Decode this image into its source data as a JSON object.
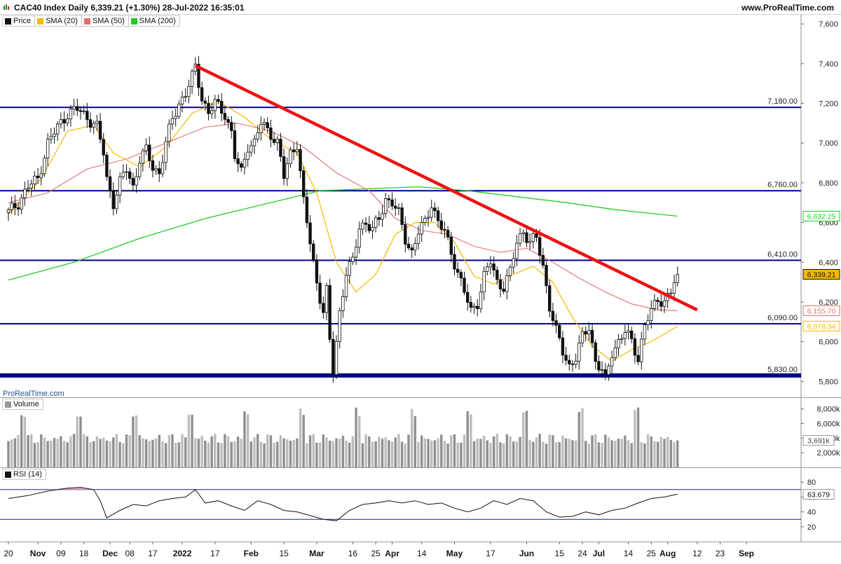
{
  "header": {
    "title": "CAC40 Index Daily 6,339.21 (+1.30%) 28-Jul-2022 16:35:01",
    "site": "www.ProRealTime.com"
  },
  "legend": {
    "price": "Price",
    "sma20": "SMA (20)",
    "sma50": "SMA (50)",
    "sma200": "SMA (200)",
    "volume": "Volume",
    "rsi": "RSI (14)"
  },
  "watermark": "ProRealTime.com",
  "colors": {
    "sma20": "#f5b800",
    "sma50": "#e07070",
    "sma200": "#22cc22",
    "trendline": "#ee1111",
    "levels": "#00008b",
    "candle_up": "#ffffff",
    "candle_down": "#111111",
    "volume": "#999999",
    "rsi": "#111111"
  },
  "chart_data": {
    "type": "candlestick",
    "title": "CAC40 Index Daily 6,339.21 (+1.30%) 28-Jul-2022 16:35:01",
    "y_axis": {
      "ylim": [
        5720,
        7650
      ],
      "ticks": [
        "7,600",
        "7,400",
        "7,200",
        "7,000",
        "6,800",
        "6,600",
        "6,400",
        "6,200",
        "6,000",
        "5,800"
      ],
      "tick_values": [
        7600,
        7400,
        7200,
        7000,
        6800,
        6600,
        6400,
        6200,
        6000,
        5800
      ]
    },
    "x_axis": {
      "ticks": [
        {
          "label": "20",
          "x": 0
        },
        {
          "label": "Nov",
          "x": 9
        },
        {
          "label": "09",
          "x": 16
        },
        {
          "label": "18",
          "x": 23
        },
        {
          "label": "Dec",
          "x": 31
        },
        {
          "label": "08",
          "x": 37
        },
        {
          "label": "17",
          "x": 44
        },
        {
          "label": "2022",
          "x": 53
        },
        {
          "label": "17",
          "x": 63
        },
        {
          "label": "Feb",
          "x": 74
        },
        {
          "label": "15",
          "x": 84
        },
        {
          "label": "Mar",
          "x": 94
        },
        {
          "label": "16",
          "x": 105
        },
        {
          "label": "25",
          "x": 112
        },
        {
          "label": "Apr",
          "x": 117
        },
        {
          "label": "14",
          "x": 126
        },
        {
          "label": "May",
          "x": 136
        },
        {
          "label": "17",
          "x": 147
        },
        {
          "label": "Jun",
          "x": 158
        },
        {
          "label": "15",
          "x": 168
        },
        {
          "label": "24",
          "x": 175
        },
        {
          "label": "Jul",
          "x": 180
        },
        {
          "label": "14",
          "x": 189
        },
        {
          "label": "25",
          "x": 196
        },
        {
          "label": "Aug",
          "x": 201
        },
        {
          "label": "12",
          "x": 210
        },
        {
          "label": "23",
          "x": 217
        },
        {
          "label": "Sep",
          "x": 225
        }
      ]
    },
    "horizontal_levels": [
      {
        "value": 7180,
        "label": "7,180.00",
        "bold": false
      },
      {
        "value": 6760,
        "label": "6,760.00",
        "bold": false
      },
      {
        "value": 6410,
        "label": "6,410.00",
        "bold": false
      },
      {
        "value": 6090,
        "label": "6,090.00",
        "bold": false
      },
      {
        "value": 5830,
        "label": "5,830.00",
        "bold": true
      }
    ],
    "trendline": {
      "x1": 57,
      "y1": 7390,
      "x2": 210,
      "y2": 6160
    },
    "value_labels": [
      {
        "name": "SMA (200)",
        "value": "6,632.25",
        "y": 6632.25
      },
      {
        "name": "Price",
        "value": "6,339.21",
        "y": 6339.21
      },
      {
        "name": "SMA (50)",
        "value": "6,155.70",
        "y": 6155.7
      },
      {
        "name": "SMA (20)",
        "value": "6,078.34",
        "y": 6078.34
      }
    ],
    "close_series": [
      [
        0,
        6650
      ],
      [
        3,
        6700
      ],
      [
        6,
        6780
      ],
      [
        9,
        6820
      ],
      [
        12,
        7000
      ],
      [
        15,
        7080
      ],
      [
        18,
        7150
      ],
      [
        21,
        7170
      ],
      [
        24,
        7130
      ],
      [
        27,
        7080
      ],
      [
        29,
        6950
      ],
      [
        30,
        6820
      ],
      [
        32,
        6700
      ],
      [
        34,
        6800
      ],
      [
        36,
        6870
      ],
      [
        38,
        6780
      ],
      [
        40,
        6920
      ],
      [
        42,
        6960
      ],
      [
        44,
        6880
      ],
      [
        46,
        6850
      ],
      [
        48,
        7000
      ],
      [
        50,
        7120
      ],
      [
        52,
        7200
      ],
      [
        54,
        7250
      ],
      [
        56,
        7330
      ],
      [
        57,
        7380
      ],
      [
        59,
        7230
      ],
      [
        61,
        7150
      ],
      [
        63,
        7200
      ],
      [
        66,
        7150
      ],
      [
        68,
        7050
      ],
      [
        69,
        6930
      ],
      [
        71,
        6850
      ],
      [
        73,
        6990
      ],
      [
        75,
        7000
      ],
      [
        77,
        7100
      ],
      [
        80,
        7050
      ],
      [
        82,
        7000
      ],
      [
        84,
        6830
      ],
      [
        86,
        6950
      ],
      [
        88,
        7000
      ],
      [
        90,
        6700
      ],
      [
        92,
        6500
      ],
      [
        94,
        6300
      ],
      [
        96,
        6150
      ],
      [
        97,
        6250
      ],
      [
        98,
        6000
      ],
      [
        99,
        5850
      ],
      [
        101,
        6150
      ],
      [
        103,
        6350
      ],
      [
        105,
        6400
      ],
      [
        107,
        6580
      ],
      [
        109,
        6600
      ],
      [
        111,
        6560
      ],
      [
        113,
        6620
      ],
      [
        115,
        6720
      ],
      [
        117,
        6700
      ],
      [
        119,
        6640
      ],
      [
        121,
        6520
      ],
      [
        123,
        6450
      ],
      [
        125,
        6550
      ],
      [
        127,
        6600
      ],
      [
        129,
        6700
      ],
      [
        131,
        6600
      ],
      [
        133,
        6550
      ],
      [
        135,
        6450
      ],
      [
        137,
        6350
      ],
      [
        139,
        6250
      ],
      [
        141,
        6150
      ],
      [
        143,
        6200
      ],
      [
        145,
        6330
      ],
      [
        147,
        6400
      ],
      [
        149,
        6300
      ],
      [
        151,
        6280
      ],
      [
        153,
        6350
      ],
      [
        155,
        6500
      ],
      [
        157,
        6560
      ],
      [
        159,
        6500
      ],
      [
        161,
        6520
      ],
      [
        163,
        6380
      ],
      [
        165,
        6180
      ],
      [
        167,
        6050
      ],
      [
        169,
        5950
      ],
      [
        171,
        5880
      ],
      [
        173,
        5920
      ],
      [
        175,
        6020
      ],
      [
        177,
        6080
      ],
      [
        179,
        5900
      ],
      [
        181,
        5850
      ],
      [
        182,
        5800
      ],
      [
        184,
        5950
      ],
      [
        186,
        6000
      ],
      [
        188,
        6050
      ],
      [
        190,
        6000
      ],
      [
        192,
        5920
      ],
      [
        194,
        6080
      ],
      [
        196,
        6150
      ],
      [
        198,
        6220
      ],
      [
        200,
        6200
      ],
      [
        202,
        6250
      ],
      [
        204,
        6339
      ]
    ],
    "sma20": [
      [
        0,
        6640
      ],
      [
        10,
        6820
      ],
      [
        18,
        7060
      ],
      [
        26,
        7090
      ],
      [
        32,
        6950
      ],
      [
        40,
        6880
      ],
      [
        48,
        6980
      ],
      [
        56,
        7150
      ],
      [
        64,
        7210
      ],
      [
        72,
        7130
      ],
      [
        80,
        7020
      ],
      [
        88,
        6950
      ],
      [
        94,
        6750
      ],
      [
        100,
        6400
      ],
      [
        106,
        6250
      ],
      [
        112,
        6340
      ],
      [
        118,
        6540
      ],
      [
        124,
        6600
      ],
      [
        130,
        6600
      ],
      [
        136,
        6500
      ],
      [
        142,
        6330
      ],
      [
        148,
        6290
      ],
      [
        154,
        6340
      ],
      [
        160,
        6380
      ],
      [
        166,
        6300
      ],
      [
        172,
        6120
      ],
      [
        178,
        5980
      ],
      [
        184,
        5900
      ],
      [
        190,
        5960
      ],
      [
        196,
        6000
      ],
      [
        204,
        6078
      ]
    ],
    "sma50": [
      [
        0,
        6700
      ],
      [
        12,
        6750
      ],
      [
        24,
        6870
      ],
      [
        36,
        6920
      ],
      [
        48,
        7000
      ],
      [
        60,
        7080
      ],
      [
        70,
        7100
      ],
      [
        80,
        7060
      ],
      [
        90,
        6980
      ],
      [
        100,
        6850
      ],
      [
        110,
        6760
      ],
      [
        118,
        6620
      ],
      [
        126,
        6560
      ],
      [
        134,
        6540
      ],
      [
        142,
        6480
      ],
      [
        150,
        6450
      ],
      [
        158,
        6470
      ],
      [
        166,
        6400
      ],
      [
        174,
        6320
      ],
      [
        182,
        6250
      ],
      [
        190,
        6190
      ],
      [
        198,
        6160
      ],
      [
        204,
        6156
      ]
    ],
    "sma200": [
      [
        0,
        6310
      ],
      [
        20,
        6400
      ],
      [
        40,
        6520
      ],
      [
        60,
        6620
      ],
      [
        80,
        6700
      ],
      [
        95,
        6760
      ],
      [
        110,
        6770
      ],
      [
        125,
        6780
      ],
      [
        140,
        6760
      ],
      [
        155,
        6730
      ],
      [
        170,
        6700
      ],
      [
        185,
        6665
      ],
      [
        204,
        6632
      ]
    ],
    "volume_axis": {
      "ticks": [
        "8,000k",
        "6,000k",
        "4,000k",
        "2,000k"
      ],
      "tick_values": [
        8000,
        6000,
        4000,
        2000
      ],
      "ylim": [
        0,
        9600
      ],
      "last_label": "3,691k",
      "last_value": 3691
    },
    "rsi_axis": {
      "ticks": [
        "80",
        "60",
        "40",
        "20"
      ],
      "tick_values": [
        80,
        60,
        40,
        20
      ],
      "ylim": [
        0,
        100
      ],
      "lines": [
        70,
        30
      ],
      "last_label": "63.679",
      "last_value": 63.679
    },
    "rsi_series": [
      [
        0,
        58
      ],
      [
        6,
        62
      ],
      [
        12,
        68
      ],
      [
        18,
        72
      ],
      [
        22,
        73
      ],
      [
        26,
        70
      ],
      [
        28,
        55
      ],
      [
        30,
        32
      ],
      [
        34,
        42
      ],
      [
        38,
        50
      ],
      [
        42,
        48
      ],
      [
        46,
        55
      ],
      [
        50,
        58
      ],
      [
        54,
        60
      ],
      [
        57,
        70
      ],
      [
        60,
        52
      ],
      [
        64,
        55
      ],
      [
        68,
        48
      ],
      [
        72,
        42
      ],
      [
        76,
        55
      ],
      [
        80,
        50
      ],
      [
        84,
        42
      ],
      [
        88,
        40
      ],
      [
        92,
        35
      ],
      [
        96,
        30
      ],
      [
        100,
        28
      ],
      [
        104,
        42
      ],
      [
        108,
        50
      ],
      [
        112,
        52
      ],
      [
        116,
        55
      ],
      [
        120,
        52
      ],
      [
        124,
        55
      ],
      [
        128,
        50
      ],
      [
        132,
        52
      ],
      [
        136,
        45
      ],
      [
        140,
        40
      ],
      [
        144,
        45
      ],
      [
        148,
        55
      ],
      [
        152,
        50
      ],
      [
        156,
        58
      ],
      [
        160,
        55
      ],
      [
        164,
        40
      ],
      [
        168,
        33
      ],
      [
        172,
        34
      ],
      [
        176,
        40
      ],
      [
        180,
        36
      ],
      [
        184,
        42
      ],
      [
        188,
        45
      ],
      [
        192,
        52
      ],
      [
        196,
        58
      ],
      [
        200,
        60
      ],
      [
        204,
        64
      ]
    ]
  }
}
